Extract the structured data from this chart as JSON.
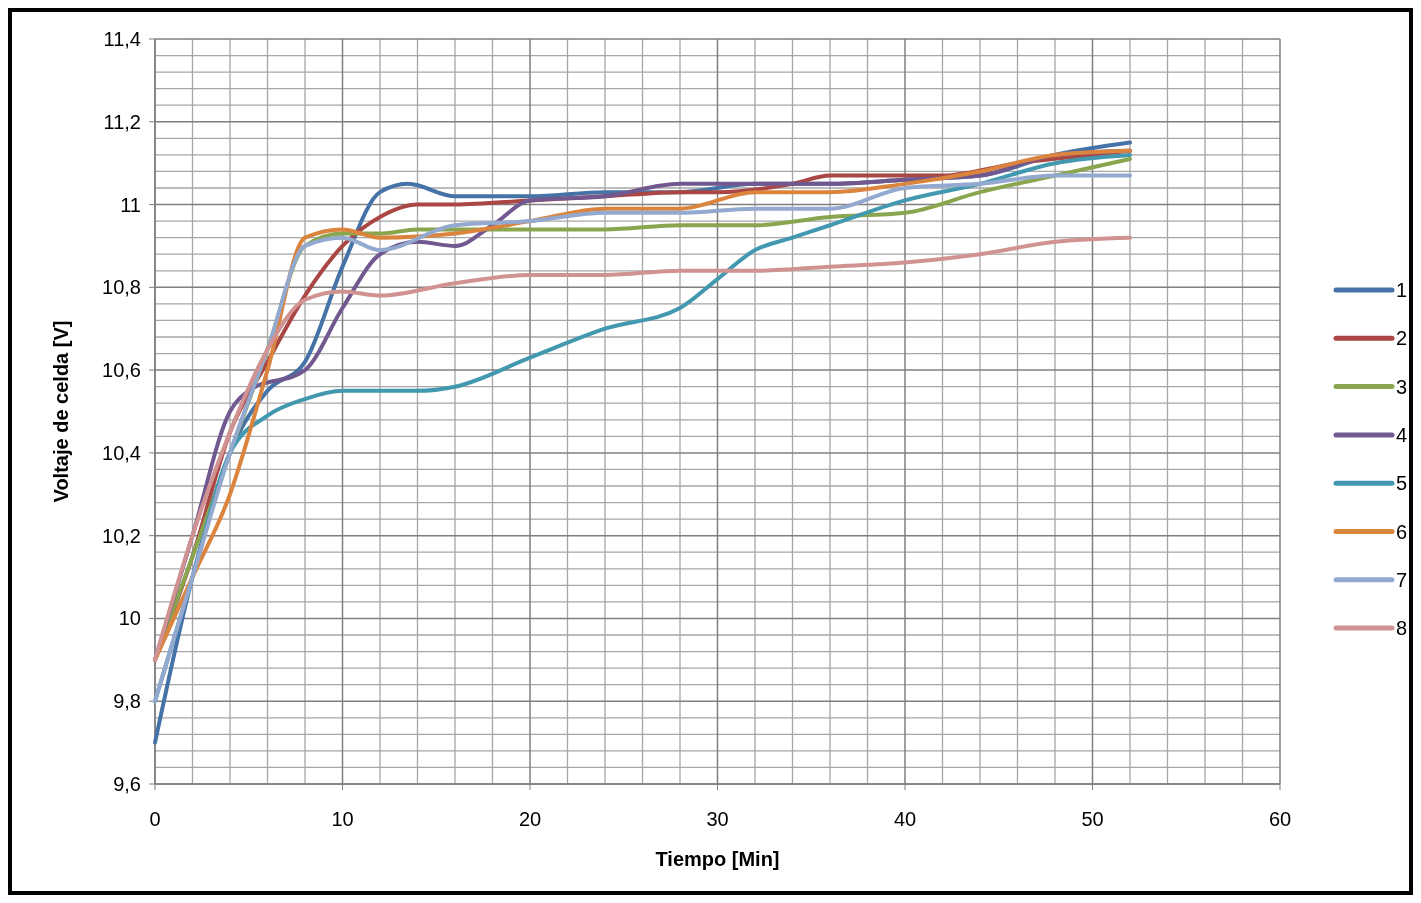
{
  "chart_data": {
    "type": "line",
    "xlabel": "Tiempo [Min]",
    "ylabel": "Voltaje de celda [V]",
    "xlim": [
      0,
      60
    ],
    "xticks": [
      0,
      10,
      20,
      30,
      40,
      50,
      60
    ],
    "ylim": [
      9.6,
      11.4
    ],
    "yticks": [
      {
        "value": 9.6,
        "label": "9,6"
      },
      {
        "value": 9.8,
        "label": "9,8"
      },
      {
        "value": 10,
        "label": "10"
      },
      {
        "value": 10.2,
        "label": "10,2"
      },
      {
        "value": 10.4,
        "label": "10,4"
      },
      {
        "value": 10.6,
        "label": "10,6"
      },
      {
        "value": 10.8,
        "label": "10,8"
      },
      {
        "value": 11,
        "label": "11"
      },
      {
        "value": 11.2,
        "label": "11,2"
      },
      {
        "value": 11.4,
        "label": "11,4"
      }
    ],
    "grid": true,
    "legend": "right",
    "marker": "none",
    "line_style": "solid",
    "series": [
      {
        "name": "1",
        "color": "#4572a7",
        "x": [
          0,
          2,
          4,
          6,
          8,
          10,
          12,
          13.5,
          16,
          20,
          24,
          28,
          32,
          36,
          40,
          44,
          48,
          52
        ],
        "values": [
          9.7,
          10.1,
          10.4,
          10.55,
          10.62,
          10.85,
          11.03,
          11.05,
          11.02,
          11.02,
          11.03,
          11.03,
          11.05,
          11.05,
          11.06,
          11.07,
          11.12,
          11.15
        ]
      },
      {
        "name": "2",
        "color": "#aa4643",
        "x": [
          0,
          2,
          4,
          6,
          8,
          10,
          12,
          14,
          16,
          20,
          24,
          28,
          30,
          34,
          36,
          38,
          42,
          46,
          50,
          52
        ],
        "values": [
          9.9,
          10.15,
          10.45,
          10.62,
          10.78,
          10.9,
          10.97,
          11,
          11,
          11.01,
          11.02,
          11.03,
          11.03,
          11.05,
          11.07,
          11.07,
          11.07,
          11.1,
          11.12,
          11.13
        ]
      },
      {
        "name": "3",
        "color": "#89a54e",
        "x": [
          0,
          2,
          4,
          6,
          8,
          10,
          12,
          14,
          20,
          24,
          28,
          32,
          36,
          40,
          44,
          48,
          52
        ],
        "values": [
          9.9,
          10.15,
          10.4,
          10.65,
          10.9,
          10.93,
          10.93,
          10.94,
          10.94,
          10.94,
          10.95,
          10.95,
          10.97,
          10.98,
          11.03,
          11.07,
          11.11
        ]
      },
      {
        "name": "4",
        "color": "#71588f",
        "x": [
          0,
          2,
          4,
          5,
          8,
          10,
          12,
          14,
          16,
          18,
          20,
          24,
          28,
          32,
          36,
          40,
          44,
          48,
          52
        ],
        "values": [
          9.9,
          10.2,
          10.5,
          10.55,
          10.6,
          10.75,
          10.88,
          10.91,
          10.9,
          10.95,
          11.01,
          11.02,
          11.05,
          11.05,
          11.05,
          11.06,
          11.07,
          11.12,
          11.13
        ]
      },
      {
        "name": "5",
        "color": "#4198af",
        "x": [
          0,
          2,
          4,
          6,
          8,
          10,
          14,
          16,
          20,
          24,
          28,
          30,
          32,
          34,
          36,
          40,
          44,
          48,
          52
        ],
        "values": [
          9.8,
          10.1,
          10.4,
          10.49,
          10.53,
          10.55,
          10.55,
          10.56,
          10.63,
          10.7,
          10.75,
          10.82,
          10.89,
          10.92,
          10.95,
          11.01,
          11.05,
          11.1,
          11.12
        ]
      },
      {
        "name": "6",
        "color": "#db843d",
        "x": [
          0,
          2,
          4,
          6,
          8,
          10,
          12,
          16,
          20,
          24,
          28,
          32,
          36,
          40,
          44,
          48,
          52
        ],
        "values": [
          9.9,
          10.1,
          10.3,
          10.6,
          10.92,
          10.94,
          10.92,
          10.93,
          10.96,
          10.99,
          10.99,
          11.03,
          11.03,
          11.05,
          11.08,
          11.12,
          11.13
        ]
      },
      {
        "name": "7",
        "color": "#93a9cf",
        "x": [
          0,
          2,
          4,
          6,
          8,
          10,
          12,
          16,
          20,
          24,
          28,
          32,
          36,
          40,
          44,
          48,
          52
        ],
        "values": [
          9.8,
          10.1,
          10.4,
          10.65,
          10.9,
          10.92,
          10.89,
          10.95,
          10.96,
          10.98,
          10.98,
          10.99,
          10.99,
          11.04,
          11.05,
          11.07,
          11.07
        ]
      },
      {
        "name": "8",
        "color": "#d19392",
        "x": [
          0,
          2,
          4,
          6,
          8,
          10,
          12,
          16,
          20,
          24,
          28,
          32,
          36,
          40,
          44,
          48,
          52
        ],
        "values": [
          9.9,
          10.2,
          10.45,
          10.65,
          10.77,
          10.79,
          10.78,
          10.81,
          10.83,
          10.83,
          10.84,
          10.84,
          10.85,
          10.86,
          10.88,
          10.91,
          10.92
        ]
      }
    ]
  }
}
